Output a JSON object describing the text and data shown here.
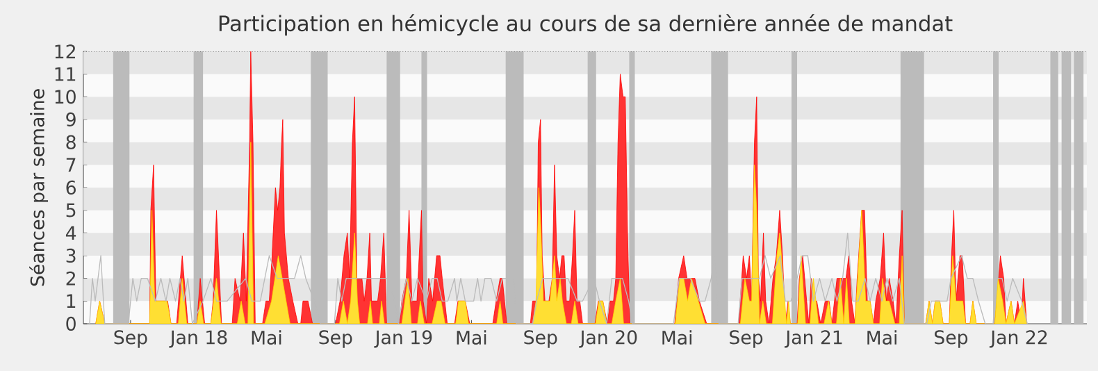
{
  "chart_data": {
    "type": "area",
    "title": "Participation en hémicycle au cours de sa dernière année de mandat",
    "ylabel": "Séances par semaine",
    "xlim": [
      "2017-06-09",
      "2022-05-01"
    ],
    "ylim": [
      0,
      12
    ],
    "yticks": [
      0,
      1,
      2,
      3,
      4,
      5,
      6,
      7,
      8,
      9,
      10,
      11,
      12
    ],
    "xticks": [
      {
        "value": "2017-09-01",
        "label": "Sep"
      },
      {
        "value": "2018-01-01",
        "label": "Jan 18"
      },
      {
        "value": "2018-05-01",
        "label": "Mai"
      },
      {
        "value": "2018-09-01",
        "label": "Sep"
      },
      {
        "value": "2019-01-01",
        "label": "Jan 19"
      },
      {
        "value": "2019-05-01",
        "label": "Mai"
      },
      {
        "value": "2019-09-01",
        "label": "Sep"
      },
      {
        "value": "2020-01-01",
        "label": "Jan 20"
      },
      {
        "value": "2020-05-01",
        "label": "Mai"
      },
      {
        "value": "2020-09-01",
        "label": "Sep"
      },
      {
        "value": "2021-01-01",
        "label": "Jan 21"
      },
      {
        "value": "2021-05-01",
        "label": "Mai"
      },
      {
        "value": "2021-09-01",
        "label": "Sep"
      },
      {
        "value": "2022-01-01",
        "label": "Jan 22"
      }
    ],
    "bands": [
      {
        "axis": "y",
        "from": 1,
        "to": 2,
        "color": "#e6e6e6"
      },
      {
        "axis": "y",
        "from": 3,
        "to": 4,
        "color": "#e6e6e6"
      },
      {
        "axis": "y",
        "from": 5,
        "to": 6,
        "color": "#e6e6e6"
      },
      {
        "axis": "y",
        "from": 7,
        "to": 8,
        "color": "#e6e6e6"
      },
      {
        "axis": "y",
        "from": 9,
        "to": 10,
        "color": "#e6e6e6"
      },
      {
        "axis": "y",
        "from": 11,
        "to": 12,
        "color": "#e6e6e6"
      },
      {
        "axis": "x",
        "from": "2017-08-01",
        "to": "2017-08-30",
        "color": "#bbbbbb"
      },
      {
        "axis": "x",
        "from": "2017-12-22",
        "to": "2018-01-08",
        "color": "#bbbbbb"
      },
      {
        "axis": "x",
        "from": "2018-07-19",
        "to": "2018-08-18",
        "color": "#bbbbbb"
      },
      {
        "axis": "x",
        "from": "2018-12-01",
        "to": "2018-12-25",
        "color": "#bbbbbb"
      },
      {
        "axis": "x",
        "from": "2019-02-01",
        "to": "2019-02-11",
        "color": "#bbbbbb"
      },
      {
        "axis": "x",
        "from": "2019-07-01",
        "to": "2019-08-02",
        "color": "#bbbbbb"
      },
      {
        "axis": "x",
        "from": "2019-11-24",
        "to": "2019-12-09",
        "color": "#bbbbbb"
      },
      {
        "axis": "x",
        "from": "2020-02-06",
        "to": "2020-02-16",
        "color": "#bbbbbb"
      },
      {
        "axis": "x",
        "from": "2020-07-01",
        "to": "2020-07-31",
        "color": "#bbbbbb"
      },
      {
        "axis": "x",
        "from": "2020-11-21",
        "to": "2020-12-01",
        "color": "#bbbbbb"
      },
      {
        "axis": "x",
        "from": "2021-06-03",
        "to": "2021-07-15",
        "color": "#bbbbbb"
      },
      {
        "axis": "x",
        "from": "2021-11-15",
        "to": "2021-11-25",
        "color": "#bbbbbb"
      },
      {
        "axis": "x",
        "from": "2022-02-25",
        "to": "2022-03-11",
        "color": "#bbbbbb"
      },
      {
        "axis": "x",
        "from": "2022-03-17",
        "to": "2022-04-03",
        "color": "#bbbbbb"
      },
      {
        "axis": "x",
        "from": "2022-04-08",
        "to": "2022-04-25",
        "color": "#bbbbbb"
      }
    ],
    "series": [
      {
        "type": "line",
        "color": "#bbbbbb",
        "x": [
          "2017-06-20",
          "2017-06-25",
          "2017-06-30",
          "2017-07-05",
          "2017-07-10",
          "2017-07-17",
          "2017-08-28",
          "2017-09-05",
          "2017-09-12",
          "2017-09-20",
          "2017-10-01",
          "2017-10-15",
          "2017-10-25",
          "2017-11-03",
          "2017-11-10",
          "2017-11-20",
          "2017-11-28",
          "2017-12-05",
          "2017-12-12",
          "2017-12-20",
          "2018-01-08",
          "2018-01-22",
          "2018-02-01",
          "2018-02-20",
          "2018-03-25",
          "2018-04-05",
          "2018-04-20",
          "2018-05-06",
          "2018-05-20",
          "2018-06-05",
          "2018-06-20",
          "2018-07-01",
          "2018-07-10",
          "2018-07-25",
          "2018-08-05",
          "2018-08-30",
          "2018-09-05",
          "2018-09-12",
          "2018-09-20",
          "2018-11-10",
          "2018-12-05",
          "2018-12-15",
          "2018-12-22",
          "2019-01-05",
          "2019-01-15",
          "2019-01-25",
          "2019-02-10",
          "2019-02-20",
          "2019-03-01",
          "2019-03-10",
          "2019-03-20",
          "2019-04-01",
          "2019-04-05",
          "2019-04-12",
          "2019-04-20",
          "2019-05-05",
          "2019-05-12",
          "2019-05-18",
          "2019-05-25",
          "2019-06-05",
          "2019-06-15",
          "2019-06-25",
          "2019-07-15",
          "2019-07-20",
          "2019-08-18",
          "2019-08-25",
          "2019-09-05",
          "2019-10-20",
          "2019-11-05",
          "2019-11-15",
          "2019-12-05",
          "2019-12-15",
          "2019-12-28",
          "2020-01-06",
          "2020-01-25",
          "2020-02-05",
          "2020-02-12",
          "2020-04-25",
          "2020-05-05",
          "2020-05-25",
          "2020-06-10",
          "2020-06-20",
          "2020-07-01",
          "2020-07-08",
          "2020-07-15",
          "2020-08-18",
          "2020-08-25",
          "2020-09-25",
          "2020-10-05",
          "2020-10-15",
          "2020-11-01",
          "2020-11-10",
          "2020-11-20",
          "2020-12-01",
          "2020-12-10",
          "2020-12-20",
          "2020-12-30",
          "2021-01-10",
          "2021-01-20",
          "2021-02-01",
          "2021-02-10",
          "2021-02-20",
          "2021-03-01",
          "2021-03-10",
          "2021-03-20",
          "2021-04-01",
          "2021-04-10",
          "2021-04-20",
          "2021-05-01",
          "2021-05-10",
          "2021-05-20",
          "2021-06-01",
          "2021-06-10",
          "2021-07-20",
          "2021-07-28",
          "2021-08-25",
          "2021-09-01",
          "2021-09-20",
          "2021-09-30",
          "2021-10-10",
          "2021-10-20",
          "2021-11-01",
          "2021-11-15",
          "2021-11-22",
          "2021-12-01",
          "2021-12-10",
          "2021-12-20",
          "2022-01-05",
          "2022-01-15"
        ],
        "values": [
          0,
          2,
          1,
          2,
          3,
          0,
          0,
          2,
          1,
          2,
          2,
          1,
          2,
          1,
          2,
          1,
          2,
          1,
          2,
          0,
          1,
          2,
          1,
          1,
          2,
          1,
          1,
          3,
          2,
          2,
          2,
          3,
          2,
          1,
          0,
          0,
          2,
          1,
          2,
          2,
          2,
          1,
          0,
          2,
          1,
          2,
          1,
          2,
          2,
          1,
          1,
          2,
          1,
          2,
          1,
          1,
          2,
          1,
          2,
          2,
          1,
          2,
          2,
          0,
          0,
          1,
          2,
          2,
          1,
          1,
          2,
          1,
          0,
          2,
          2,
          1,
          0,
          0,
          2,
          2,
          1,
          1,
          2,
          3,
          0,
          0,
          2,
          2,
          3,
          2,
          3,
          1,
          1,
          2,
          3,
          3,
          1,
          2,
          1,
          2,
          1,
          2,
          4,
          1,
          1,
          2,
          1,
          2,
          1,
          2,
          1,
          2,
          0,
          0,
          1,
          1,
          2,
          3,
          2,
          2,
          1,
          0,
          0,
          2,
          2,
          1,
          2,
          1,
          0
        ]
      },
      {
        "color": "#ff0000",
        "x": [
          "2017-07-01",
          "2017-07-08",
          "2017-07-17",
          "2017-10-05",
          "2017-10-07",
          "2017-10-12",
          "2017-10-16",
          "2017-11-06",
          "2017-11-12",
          "2017-11-22",
          "2017-12-02",
          "2017-12-12",
          "2017-12-28",
          "2018-01-03",
          "2018-01-11",
          "2018-01-22",
          "2018-01-26",
          "2018-02-01",
          "2018-02-10",
          "2018-03-01",
          "2018-03-06",
          "2018-03-15",
          "2018-03-21",
          "2018-03-26",
          "2018-04-01",
          "2018-04-03",
          "2018-04-07",
          "2018-04-11",
          "2018-04-24",
          "2018-04-30",
          "2018-05-06",
          "2018-05-11",
          "2018-05-17",
          "2018-05-21",
          "2018-05-25",
          "2018-05-28",
          "2018-05-30",
          "2018-06-02",
          "2018-06-09",
          "2018-06-17",
          "2018-06-26",
          "2018-07-01",
          "2018-07-05",
          "2018-07-14",
          "2018-07-22",
          "2018-09-01",
          "2018-09-09",
          "2018-09-16",
          "2018-09-22",
          "2018-09-26",
          "2018-10-01",
          "2018-10-05",
          "2018-10-09",
          "2018-10-14",
          "2018-10-18",
          "2018-10-22",
          "2018-10-27",
          "2018-11-01",
          "2018-11-04",
          "2018-11-10",
          "2018-11-15",
          "2018-11-20",
          "2018-11-26",
          "2018-12-01",
          "2018-12-24",
          "2018-12-28",
          "2019-01-05",
          "2019-01-10",
          "2019-01-15",
          "2019-01-24",
          "2019-02-01",
          "2019-02-04",
          "2019-02-10",
          "2019-02-14",
          "2019-02-21",
          "2019-02-28",
          "2019-03-06",
          "2019-03-10",
          "2019-03-19",
          "2019-04-01",
          "2019-04-07",
          "2019-04-20",
          "2019-04-28",
          "2019-06-08",
          "2019-06-14",
          "2019-06-21",
          "2019-06-25",
          "2019-07-03",
          "2019-08-14",
          "2019-08-18",
          "2019-08-25",
          "2019-08-28",
          "2019-09-01",
          "2019-09-04",
          "2019-09-09",
          "2019-09-16",
          "2019-09-22",
          "2019-09-26",
          "2019-09-30",
          "2019-10-05",
          "2019-10-09",
          "2019-10-13",
          "2019-10-17",
          "2019-10-23",
          "2019-10-28",
          "2019-11-01",
          "2019-11-05",
          "2019-11-10",
          "2019-11-15",
          "2019-12-07",
          "2019-12-13",
          "2019-12-21",
          "2019-12-29",
          "2020-01-03",
          "2020-01-09",
          "2020-01-13",
          "2020-01-17",
          "2020-01-21",
          "2020-01-26",
          "2020-01-30",
          "2020-02-03",
          "2020-02-07",
          "2020-04-27",
          "2020-05-04",
          "2020-05-13",
          "2020-05-19",
          "2020-05-25",
          "2020-06-02",
          "2020-06-10",
          "2020-06-23",
          "2020-08-19",
          "2020-08-27",
          "2020-09-02",
          "2020-09-07",
          "2020-09-11",
          "2020-09-16",
          "2020-09-20",
          "2020-09-23",
          "2020-09-27",
          "2020-10-02",
          "2020-10-06",
          "2020-10-12",
          "2020-10-19",
          "2020-10-25",
          "2020-10-31",
          "2020-11-05",
          "2020-11-10",
          "2020-11-15",
          "2020-11-19",
          "2020-12-01",
          "2020-12-05",
          "2020-12-11",
          "2020-12-18",
          "2020-12-22",
          "2020-12-26",
          "2021-01-01",
          "2021-01-05",
          "2021-01-12",
          "2021-01-20",
          "2021-01-27",
          "2021-02-01",
          "2021-02-10",
          "2021-02-18",
          "2021-02-26",
          "2021-03-03",
          "2021-03-08",
          "2021-03-14",
          "2021-03-18",
          "2021-03-26",
          "2021-03-31",
          "2021-04-05",
          "2021-04-10",
          "2021-04-16",
          "2021-04-20",
          "2021-04-28",
          "2021-05-04",
          "2021-05-09",
          "2021-05-14",
          "2021-05-21",
          "2021-05-26",
          "2021-06-01",
          "2021-06-06",
          "2021-06-10",
          "2021-07-18",
          "2021-07-24",
          "2021-07-30",
          "2021-08-04",
          "2021-08-12",
          "2021-08-18",
          "2021-08-29",
          "2021-09-02",
          "2021-09-06",
          "2021-09-10",
          "2021-09-17",
          "2021-09-21",
          "2021-09-27",
          "2021-10-05",
          "2021-10-10",
          "2021-10-16",
          "2021-11-18",
          "2021-11-22",
          "2021-11-28",
          "2021-12-04",
          "2021-12-08",
          "2021-12-17",
          "2021-12-23",
          "2021-12-29",
          "2022-01-04",
          "2022-01-08",
          "2022-01-14"
        ],
        "values": [
          0,
          1,
          0,
          0,
          5,
          7,
          1,
          1,
          0,
          0,
          3,
          0,
          0,
          2,
          0,
          0,
          1,
          5,
          0,
          0,
          2,
          1,
          4,
          1,
          8,
          12,
          8,
          0,
          0,
          1,
          1,
          3,
          6,
          5,
          6,
          8,
          9,
          4,
          2,
          1,
          0,
          0,
          1,
          1,
          0,
          0,
          1,
          3,
          4,
          2,
          8,
          10,
          2,
          2,
          2,
          1,
          2,
          4,
          1,
          1,
          1,
          2,
          4,
          0,
          0,
          1,
          2,
          5,
          1,
          1,
          5,
          1,
          0,
          2,
          1,
          3,
          3,
          2,
          0,
          0,
          1,
          1,
          0,
          0,
          1,
          2,
          2,
          0,
          0,
          1,
          1,
          8,
          9,
          3,
          1,
          1,
          2,
          7,
          3,
          2,
          3,
          3,
          1,
          1,
          3,
          5,
          1,
          1,
          0,
          0,
          1,
          1,
          0,
          1,
          1,
          2,
          8,
          11,
          10,
          10,
          4,
          0,
          0,
          2,
          3,
          2,
          2,
          2,
          1,
          0,
          0,
          3,
          2,
          3,
          1,
          8,
          10,
          2,
          1,
          4,
          1,
          0,
          2,
          3,
          5,
          3,
          0,
          1,
          0,
          0,
          2,
          3,
          1,
          0,
          2,
          1,
          1,
          0,
          1,
          1,
          0,
          2,
          2,
          2,
          3,
          1,
          0,
          2,
          5,
          5,
          1,
          1,
          0,
          1,
          2,
          4,
          1,
          2,
          1,
          0,
          3,
          5,
          0,
          0,
          1,
          0,
          1,
          1,
          0,
          0,
          3,
          5,
          1,
          3,
          3,
          0,
          0,
          1,
          0,
          0,
          1,
          3,
          2,
          0,
          1,
          0,
          1,
          0,
          2,
          0
        ]
      },
      {
        "color": "#ffd700",
        "x": [
          "2017-07-01",
          "2017-07-08",
          "2017-07-17",
          "2017-10-05",
          "2017-10-09",
          "2017-10-14",
          "2017-10-20",
          "2017-11-05",
          "2017-11-12",
          "2017-11-25",
          "2017-12-02",
          "2017-12-10",
          "2017-12-28",
          "2018-01-03",
          "2018-01-09",
          "2018-01-22",
          "2018-02-01",
          "2018-02-09",
          "2018-03-10",
          "2018-03-17",
          "2018-03-24",
          "2018-03-29",
          "2018-04-03",
          "2018-04-08",
          "2018-04-28",
          "2018-05-10",
          "2018-05-22",
          "2018-06-05",
          "2018-06-12",
          "2018-09-08",
          "2018-09-15",
          "2018-09-22",
          "2018-09-28",
          "2018-10-05",
          "2018-10-10",
          "2018-10-14",
          "2018-10-28",
          "2018-11-02",
          "2018-11-06",
          "2018-11-18",
          "2018-11-22",
          "2018-11-27",
          "2018-12-28",
          "2019-01-08",
          "2019-01-14",
          "2019-01-25",
          "2019-01-30",
          "2019-02-06",
          "2019-02-20",
          "2019-03-01",
          "2019-03-08",
          "2019-03-15",
          "2019-04-03",
          "2019-04-08",
          "2019-04-20",
          "2019-04-26",
          "2019-06-15",
          "2019-06-21",
          "2019-06-26",
          "2019-08-18",
          "2019-08-24",
          "2019-08-29",
          "2019-09-02",
          "2019-09-06",
          "2019-09-12",
          "2019-09-18",
          "2019-09-26",
          "2019-09-30",
          "2019-10-06",
          "2019-10-10",
          "2019-10-17",
          "2019-10-26",
          "2019-11-01",
          "2019-11-07",
          "2019-12-08",
          "2019-12-14",
          "2019-12-21",
          "2019-12-28",
          "2020-01-06",
          "2020-01-13",
          "2020-01-21",
          "2020-01-27",
          "2020-04-28",
          "2020-05-06",
          "2020-05-13",
          "2020-05-20",
          "2020-05-27",
          "2020-06-08",
          "2020-06-20",
          "2020-08-22",
          "2020-08-30",
          "2020-09-07",
          "2020-09-11",
          "2020-09-16",
          "2020-09-20",
          "2020-09-25",
          "2020-10-01",
          "2020-10-07",
          "2020-10-18",
          "2020-10-26",
          "2020-10-31",
          "2020-11-06",
          "2020-11-12",
          "2020-11-16",
          "2020-11-19",
          "2020-12-02",
          "2020-12-08",
          "2020-12-16",
          "2020-12-24",
          "2020-12-30",
          "2021-01-08",
          "2021-01-18",
          "2021-01-26",
          "2021-02-01",
          "2021-02-09",
          "2021-02-16",
          "2021-02-22",
          "2021-02-27",
          "2021-03-04",
          "2021-03-14",
          "2021-03-26",
          "2021-04-02",
          "2021-04-10",
          "2021-04-16",
          "2021-04-27",
          "2021-05-02",
          "2021-05-08",
          "2021-05-14",
          "2021-05-24",
          "2021-06-01",
          "2021-06-06",
          "2021-06-10",
          "2021-07-18",
          "2021-07-24",
          "2021-07-30",
          "2021-08-04",
          "2021-08-12",
          "2021-08-18",
          "2021-08-29",
          "2021-09-04",
          "2021-09-10",
          "2021-09-17",
          "2021-09-22",
          "2021-09-27",
          "2021-10-05",
          "2021-10-10",
          "2021-10-16",
          "2021-11-18",
          "2021-11-24",
          "2021-12-02",
          "2021-12-08",
          "2021-12-17",
          "2021-12-23",
          "2022-01-08",
          "2022-01-14"
        ],
        "values": [
          0,
          1,
          0,
          0,
          5,
          1,
          1,
          1,
          0,
          0,
          2,
          0,
          0,
          1,
          0,
          0,
          2,
          0,
          0,
          1,
          0,
          0,
          8,
          0,
          0,
          1,
          3,
          1,
          0,
          0,
          1,
          0,
          1,
          4,
          1,
          0,
          0,
          1,
          0,
          0,
          1,
          0,
          0,
          2,
          0,
          0,
          1,
          0,
          0,
          1,
          1,
          0,
          0,
          1,
          1,
          0,
          0,
          1,
          0,
          0,
          1,
          6,
          4,
          1,
          1,
          1,
          3,
          1,
          2,
          1,
          0,
          0,
          1,
          0,
          0,
          1,
          1,
          0,
          0,
          1,
          2,
          0,
          0,
          2,
          2,
          1,
          2,
          1,
          0,
          0,
          2,
          1,
          1,
          7,
          5,
          0,
          1,
          0,
          0,
          3,
          4,
          2,
          0,
          1,
          0,
          0,
          3,
          0,
          0,
          2,
          0,
          0,
          1,
          0,
          0,
          2,
          0,
          2,
          0,
          0,
          5,
          1,
          1,
          0,
          0,
          2,
          1,
          1,
          0,
          0,
          3,
          0,
          0,
          1,
          0,
          1,
          1,
          0,
          0,
          3,
          1,
          1,
          1,
          0,
          0,
          1,
          0,
          0,
          2,
          1,
          0,
          1,
          0,
          1,
          0
        ]
      }
    ]
  }
}
